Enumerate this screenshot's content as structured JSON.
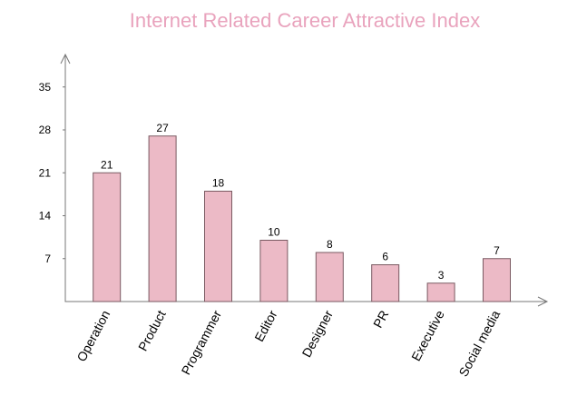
{
  "chart_data": {
    "type": "bar",
    "title": "Internet Related Career Attractive Index",
    "categories": [
      "Operation",
      "Product",
      "Programmer",
      "Editor",
      "Designer",
      "PR",
      "Executive",
      "Social media"
    ],
    "values": [
      21,
      27,
      18,
      10,
      8,
      6,
      3,
      7
    ],
    "color": "#ecbac6",
    "ylim": [
      0,
      40
    ],
    "yticks": [
      7,
      14,
      21,
      28,
      35
    ],
    "grid": false
  }
}
